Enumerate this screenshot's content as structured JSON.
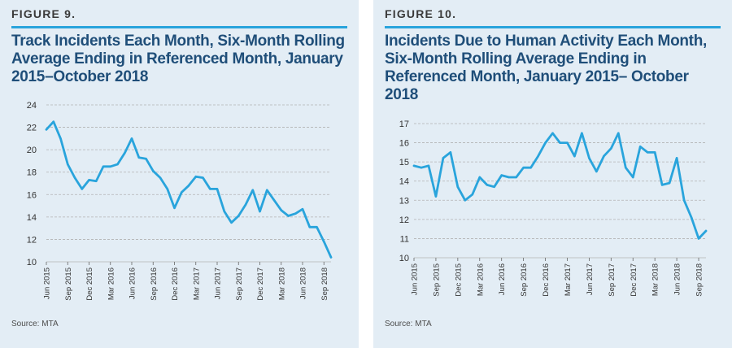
{
  "panels": [
    {
      "figure_label": "FIGURE 9.",
      "title": "Track Incidents Each Month,  Six-Month Rolling Average Ending in Referenced Month, January 2015–October 2018",
      "source": "Source: MTA"
    },
    {
      "figure_label": "FIGURE 10.",
      "title": "Incidents Due to Human Activity Each Month, Six-Month Rolling Average Ending in Referenced Month, January 2015– October 2018",
      "source": "Source: MTA"
    }
  ],
  "colors": {
    "line": "#29a4dc",
    "title": "#1f4e79",
    "rule": "#29a4dc",
    "panel_bg": "#e3edf5",
    "grid": "#b3b3b3"
  },
  "chart_data": [
    {
      "type": "line",
      "title": "Track Incidents Each Month,  Six-Month Rolling Average Ending in Referenced Month, January 2015–October 2018",
      "xlabel": "",
      "ylabel": "",
      "ylim": [
        10,
        24
      ],
      "yticks": [
        10,
        12,
        14,
        16,
        18,
        20,
        22,
        24
      ],
      "grid": "horizontal dashed",
      "xtick_labels": [
        "Jun 2015",
        "Sep 2015",
        "Dec 2015",
        "Mar 2016",
        "Jun 2016",
        "Sep 2016",
        "Dec 2016",
        "Mar 2017",
        "Jun 2017",
        "Sep 2017",
        "Dec 2017",
        "Mar 2018",
        "Jun 2018",
        "Sep 2018"
      ],
      "x": [
        "2015-06",
        "2015-07",
        "2015-08",
        "2015-09",
        "2015-10",
        "2015-11",
        "2015-12",
        "2016-01",
        "2016-02",
        "2016-03",
        "2016-04",
        "2016-05",
        "2016-06",
        "2016-07",
        "2016-08",
        "2016-09",
        "2016-10",
        "2016-11",
        "2016-12",
        "2017-01",
        "2017-02",
        "2017-03",
        "2017-04",
        "2017-05",
        "2017-06",
        "2017-07",
        "2017-08",
        "2017-09",
        "2017-10",
        "2017-11",
        "2017-12",
        "2018-01",
        "2018-02",
        "2018-03",
        "2018-04",
        "2018-05",
        "2018-06",
        "2018-07",
        "2018-08",
        "2018-09",
        "2018-10"
      ],
      "values": [
        21.8,
        22.5,
        21.0,
        18.7,
        17.5,
        16.5,
        17.3,
        17.2,
        18.5,
        18.5,
        18.7,
        19.7,
        21.0,
        19.3,
        19.2,
        18.1,
        17.5,
        16.5,
        14.8,
        16.2,
        16.8,
        17.6,
        17.5,
        16.5,
        16.5,
        14.5,
        13.5,
        14.1,
        15.1,
        16.4,
        14.5,
        16.4,
        15.5,
        14.6,
        14.1,
        14.3,
        14.7,
        13.1,
        13.1,
        11.8,
        10.4
      ]
    },
    {
      "type": "line",
      "title": "Incidents Due to Human Activity Each Month, Six-Month Rolling Average Ending in Referenced Month, January 2015– October 2018",
      "xlabel": "",
      "ylabel": "",
      "ylim": [
        10,
        17
      ],
      "yticks": [
        10,
        11,
        12,
        13,
        14,
        15,
        16,
        17
      ],
      "grid": "horizontal dashed",
      "xtick_labels": [
        "Jun 2015",
        "Sep 2015",
        "Dec 2015",
        "Mar 2016",
        "Jun 2016",
        "Sep 2016",
        "Dec 2016",
        "Mar 2017",
        "Jun 2017",
        "Sep 2017",
        "Dec 2017",
        "Mar 2018",
        "Jun 2018",
        "Sep 2018"
      ],
      "x": [
        "2015-06",
        "2015-07",
        "2015-08",
        "2015-09",
        "2015-10",
        "2015-11",
        "2015-12",
        "2016-01",
        "2016-02",
        "2016-03",
        "2016-04",
        "2016-05",
        "2016-06",
        "2016-07",
        "2016-08",
        "2016-09",
        "2016-10",
        "2016-11",
        "2016-12",
        "2017-01",
        "2017-02",
        "2017-03",
        "2017-04",
        "2017-05",
        "2017-06",
        "2017-07",
        "2017-08",
        "2017-09",
        "2017-10",
        "2017-11",
        "2017-12",
        "2018-01",
        "2018-02",
        "2018-03",
        "2018-04",
        "2018-05",
        "2018-06",
        "2018-07",
        "2018-08",
        "2018-09",
        "2018-10"
      ],
      "values": [
        14.8,
        14.7,
        14.8,
        13.2,
        15.2,
        15.5,
        13.7,
        13.0,
        13.3,
        14.2,
        13.8,
        13.7,
        14.3,
        14.2,
        14.2,
        14.7,
        14.7,
        15.3,
        16.0,
        16.5,
        16.0,
        16.0,
        15.3,
        16.5,
        15.2,
        14.5,
        15.3,
        15.7,
        16.5,
        14.7,
        14.2,
        15.8,
        15.5,
        15.5,
        13.8,
        13.9,
        15.2,
        13.0,
        12.1,
        11.0,
        11.4
      ]
    }
  ]
}
